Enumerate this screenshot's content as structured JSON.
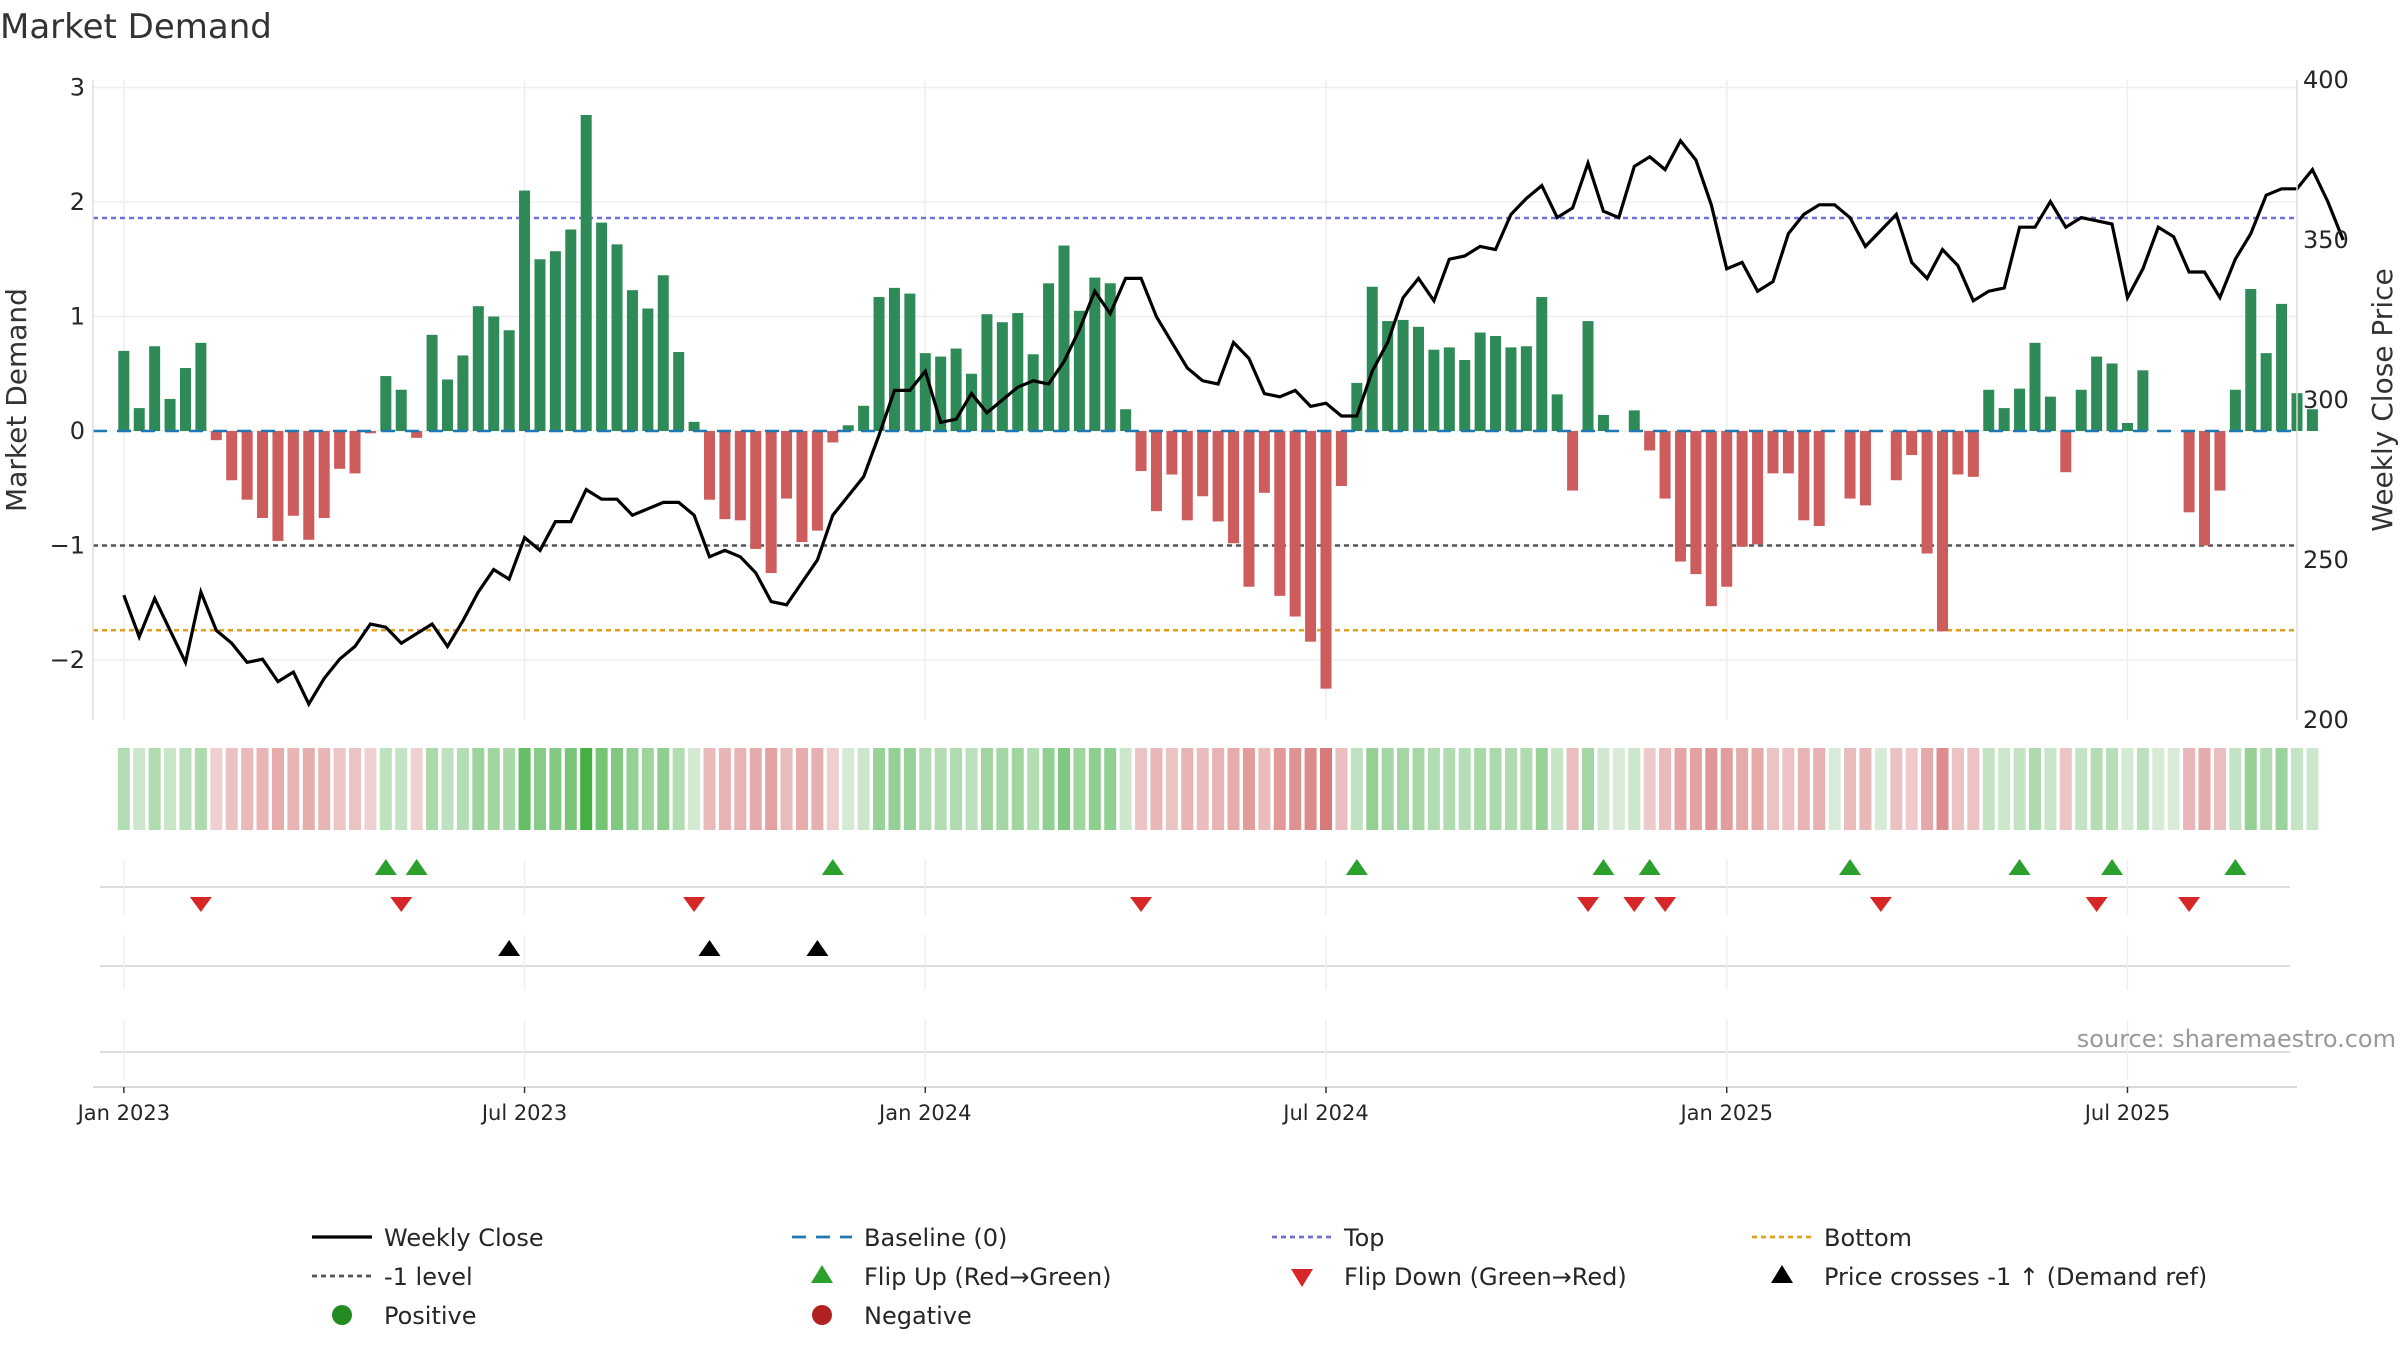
{
  "chart_data": {
    "type": "bar",
    "title": "Market Demand",
    "ylabel": "Market Demand",
    "y2label": "Weekly Close Price",
    "ylim": [
      -2.5,
      3
    ],
    "y2lim": [
      200,
      400
    ],
    "yticks": [
      "−2",
      "−1",
      "0",
      "1",
      "2",
      "3"
    ],
    "y2ticks": [
      "200",
      "250",
      "300",
      "350",
      "400"
    ],
    "x_range": [
      -2,
      141
    ],
    "xticks": [
      {
        "label": "Jan 2023",
        "x": 0
      },
      {
        "label": "Jul 2023",
        "x": 26
      },
      {
        "label": "Jan 2024",
        "x": 52
      },
      {
        "label": "Jul 2024",
        "x": 78
      },
      {
        "label": "Jan 2025",
        "x": 104
      },
      {
        "label": "Jul 2025",
        "x": 130
      }
    ],
    "reference_lines": {
      "top": 1.86,
      "minus_one": -1.0,
      "bottom": -1.74
    },
    "demand": [
      0.7,
      0.2,
      0.74,
      0.28,
      0.55,
      0.77,
      -0.08,
      -0.43,
      -0.6,
      -0.76,
      -0.96,
      -0.74,
      -0.95,
      -0.76,
      -0.33,
      -0.37,
      -0.02,
      0.48,
      0.36,
      -0.06,
      0.84,
      0.45,
      0.66,
      1.09,
      1.0,
      0.88,
      2.1,
      1.5,
      1.57,
      1.76,
      2.76,
      1.82,
      1.63,
      1.23,
      1.07,
      1.36,
      0.69,
      0.08,
      -0.6,
      -0.77,
      -0.78,
      -1.03,
      -1.24,
      -0.59,
      -0.97,
      -0.87,
      -0.1,
      0.05,
      0.22,
      1.17,
      1.25,
      1.2,
      0.68,
      0.65,
      0.72,
      0.5,
      1.02,
      0.95,
      1.03,
      0.67,
      1.29,
      1.62,
      1.05,
      1.34,
      1.29,
      0.19,
      -0.35,
      -0.7,
      -0.38,
      -0.78,
      -0.57,
      -0.79,
      -0.98,
      -1.36,
      -0.54,
      -1.44,
      -1.62,
      -1.84,
      -2.25,
      -0.48,
      0.42,
      1.26,
      0.96,
      0.97,
      0.91,
      0.71,
      0.73,
      0.62,
      0.86,
      0.83,
      0.73,
      0.74,
      1.17,
      0.32,
      -0.52,
      0.96,
      0.14,
      0.0,
      0.18,
      -0.17,
      -0.59,
      -1.14,
      -1.25,
      -1.53,
      -1.36,
      -1.01,
      -0.99,
      -0.37,
      -0.37,
      -0.78,
      -0.83,
      0.0,
      -0.59,
      -0.65,
      0.0,
      -0.43,
      -0.21,
      -1.07,
      -1.75,
      -0.38,
      -0.4,
      0.36,
      0.2,
      0.37,
      0.77,
      0.3,
      -0.36,
      0.36,
      0.65,
      0.59,
      0.07,
      0.53,
      0.0,
      0.0,
      -0.71,
      -1.0,
      -0.52,
      0.36,
      1.24,
      0.68,
      1.11,
      0.33,
      0.19
    ],
    "price": [
      239,
      226,
      238,
      228,
      218,
      240,
      228,
      224,
      218,
      219,
      212,
      215,
      205,
      213,
      219,
      223,
      230,
      229,
      224,
      227,
      230,
      223,
      231,
      240,
      247,
      244,
      257,
      253,
      262,
      262,
      272,
      269,
      269,
      264,
      266,
      268,
      268,
      264,
      251,
      253,
      251,
      246,
      237,
      236,
      243,
      250,
      264,
      270,
      276,
      289,
      303,
      303,
      309,
      293,
      294,
      302,
      296,
      300,
      304,
      306,
      305,
      312,
      322,
      334,
      327,
      338,
      338,
      326,
      318,
      310,
      306,
      305,
      318,
      313,
      302,
      301,
      303,
      298,
      299,
      295,
      295,
      309,
      318,
      332,
      338,
      331,
      344,
      345,
      348,
      347,
      358,
      363,
      367,
      357,
      360,
      374,
      359,
      357,
      373,
      376,
      372,
      381,
      375,
      361,
      341,
      343,
      334,
      337,
      352,
      358,
      361,
      361,
      357,
      348,
      353,
      358,
      343,
      338,
      347,
      342,
      331,
      334,
      335,
      354,
      354,
      362,
      354,
      357,
      356,
      355,
      332,
      341,
      354,
      351,
      340,
      340,
      332,
      344,
      352,
      364,
      366,
      366,
      372,
      362,
      350
    ],
    "flip_up_at": [
      17,
      19,
      46,
      80,
      96,
      99,
      112,
      123,
      129,
      137
    ],
    "flip_down_at": [
      5,
      18,
      37,
      66,
      95,
      98,
      100,
      114,
      128,
      134
    ],
    "price_cross_at": [
      25,
      38,
      45
    ],
    "legend": [
      {
        "label": "Weekly Close",
        "symbol": "line-solid",
        "color": "#000000"
      },
      {
        "label": "Baseline (0)",
        "symbol": "line-dash",
        "color": "#1f77b4"
      },
      {
        "label": "Top",
        "symbol": "line-dot",
        "color": "#7070d8"
      },
      {
        "label": "Bottom",
        "symbol": "line-dot",
        "color": "#e0a020"
      },
      {
        "label": "-1 level",
        "symbol": "line-dot",
        "color": "#555555"
      },
      {
        "label": "Flip Up (Red→Green)",
        "symbol": "triangle-up",
        "color": "#2ca02c"
      },
      {
        "label": "Flip Down (Green→Red)",
        "symbol": "triangle-down",
        "color": "#d62728"
      },
      {
        "label": "Price crosses -1 ↑ (Demand ref)",
        "symbol": "triangle-up",
        "color": "#000000"
      },
      {
        "label": "Positive",
        "symbol": "circle",
        "color": "#228B22"
      },
      {
        "label": "Negative",
        "symbol": "circle",
        "color": "#B22222"
      }
    ],
    "source": "source: sharemaestro.com"
  },
  "colors": {
    "positive_bar": "#2e8b57",
    "negative_bar": "#cd5c5c",
    "price_line": "#000000",
    "grid": "#eeeeee"
  }
}
